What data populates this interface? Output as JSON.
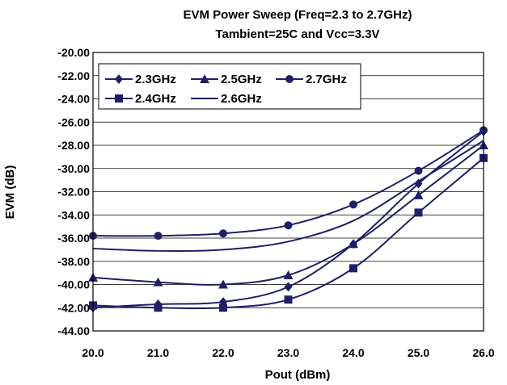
{
  "chart_data": {
    "type": "line",
    "title": "EVM Power Sweep (Freq=2.3 to 2.7GHz)",
    "subtitle": "Tambient=25C and Vcc=3.3V",
    "xlabel": "Pout (dBm)",
    "ylabel": "EVM (dB)",
    "xlim": [
      20,
      26
    ],
    "ylim": [
      -44,
      -20
    ],
    "xticks": [
      "20.0",
      "21.0",
      "22.0",
      "23.0",
      "24.0",
      "25.0",
      "26.0"
    ],
    "yticks": [
      "-20.00",
      "-22.00",
      "-24.00",
      "-26.00",
      "-28.00",
      "-30.00",
      "-32.00",
      "-34.00",
      "-36.00",
      "-38.00",
      "-40.00",
      "-42.00",
      "-44.00"
    ],
    "grid": "horizontal",
    "legend_position": "top-left",
    "line_color": "#1f1f66",
    "x": [
      20,
      21,
      22,
      23,
      24,
      25,
      26
    ],
    "series": [
      {
        "name": "2.3GHz",
        "marker": "diamond",
        "values": [
          -42.0,
          -41.7,
          -41.5,
          -40.2,
          -36.5,
          -31.3,
          -26.8
        ]
      },
      {
        "name": "2.5GHz",
        "marker": "triangle",
        "values": [
          -39.4,
          -39.8,
          -40.0,
          -39.2,
          -36.5,
          -32.3,
          -28.0
        ]
      },
      {
        "name": "2.7GHz",
        "marker": "circle",
        "values": [
          -35.8,
          -35.8,
          -35.6,
          -34.9,
          -33.1,
          -30.2,
          -26.7
        ]
      },
      {
        "name": "2.4GHz",
        "marker": "square",
        "values": [
          -41.8,
          -42.0,
          -42.0,
          -41.3,
          -38.6,
          -33.8,
          -29.1
        ]
      },
      {
        "name": "2.6GHz",
        "marker": "none",
        "values": [
          -36.9,
          -37.1,
          -37.0,
          -36.3,
          -34.5,
          -31.1,
          -27.6
        ]
      }
    ]
  }
}
